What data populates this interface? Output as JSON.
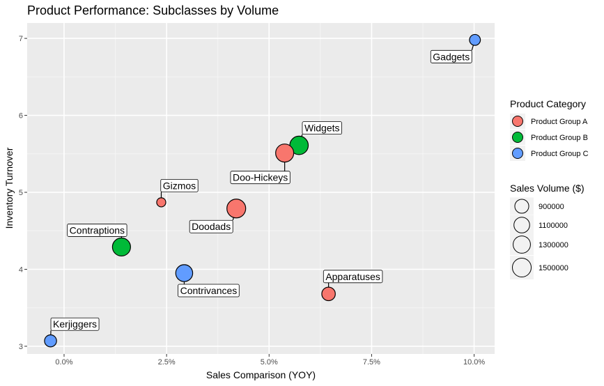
{
  "chart_data": {
    "type": "scatter",
    "title": "Product Performance: Subclasses by Volume",
    "xlabel": "Sales Comparison (YOY)",
    "ylabel": "Inventory Turnover",
    "xlim": [
      -0.009,
      0.105
    ],
    "ylim": [
      2.9,
      7.2
    ],
    "x_ticks": [
      0.0,
      0.025,
      0.05,
      0.075,
      0.1
    ],
    "x_tick_labels": [
      "0.0%",
      "2.5%",
      "5.0%",
      "7.5%",
      "10.0%"
    ],
    "y_ticks": [
      3,
      4,
      5,
      6,
      7
    ],
    "y_tick_labels": [
      "3",
      "4",
      "5",
      "6",
      "7"
    ],
    "grid": true,
    "legend_color": {
      "title": "Product Category",
      "placement": "right",
      "entries": [
        {
          "label": "Product Group A",
          "color": "#F8766D"
        },
        {
          "label": "Product Group B",
          "color": "#00BA38"
        },
        {
          "label": "Product Group C",
          "color": "#619CFF"
        }
      ]
    },
    "legend_size": {
      "title": "Sales Volume ($)",
      "placement": "right",
      "entries": [
        {
          "label": "900000",
          "value": 900000
        },
        {
          "label": "1100000",
          "value": 1100000
        },
        {
          "label": "1300000",
          "value": 1300000
        },
        {
          "label": "1500000",
          "value": 1500000
        }
      ]
    },
    "size_range": [
      300000,
      1600000
    ],
    "points": [
      {
        "label": "Gadgets",
        "group": "Product Group C",
        "x": 0.1002,
        "y": 6.98,
        "volume": 600000
      },
      {
        "label": "Widgets",
        "group": "Product Group B",
        "x": 0.0573,
        "y": 5.61,
        "volume": 1450000
      },
      {
        "label": "Doo-Hickeys",
        "group": "Product Group A",
        "x": 0.0538,
        "y": 5.51,
        "volume": 1400000
      },
      {
        "label": "Gizmos",
        "group": "Product Group A",
        "x": 0.0237,
        "y": 4.87,
        "volume": 450000
      },
      {
        "label": "Doodads",
        "group": "Product Group A",
        "x": 0.042,
        "y": 4.79,
        "volume": 1500000
      },
      {
        "label": "Contraptions",
        "group": "Product Group B",
        "x": 0.014,
        "y": 4.29,
        "volume": 1400000
      },
      {
        "label": "Contrivances",
        "group": "Product Group C",
        "x": 0.0293,
        "y": 3.95,
        "volume": 1250000
      },
      {
        "label": "Apparatuses",
        "group": "Product Group A",
        "x": 0.0645,
        "y": 3.68,
        "volume": 850000
      },
      {
        "label": "Kerjiggers",
        "group": "Product Group C",
        "x": -0.0033,
        "y": 3.07,
        "volume": 700000
      }
    ]
  }
}
